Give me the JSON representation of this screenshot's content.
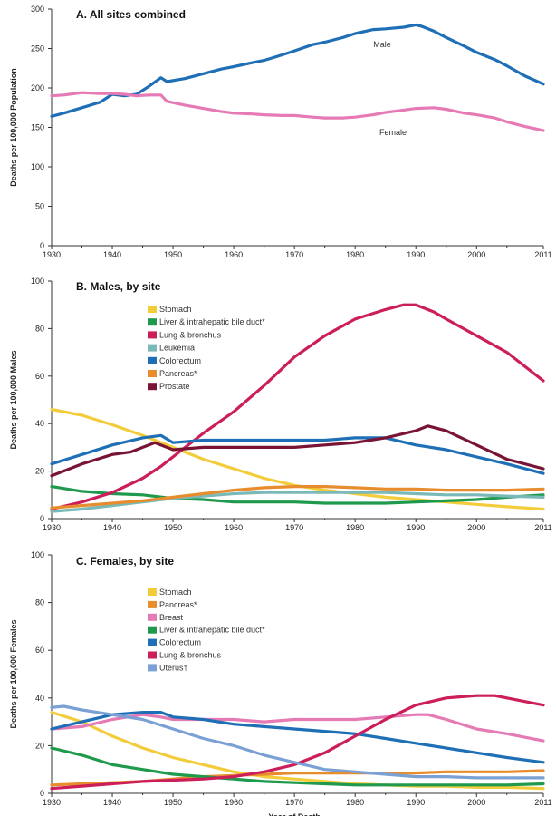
{
  "chart_data": [
    {
      "type": "line",
      "title": "A. All sites combined",
      "ylabel": "Deaths per 100,000 Population",
      "xlabel": "",
      "ylim": [
        0,
        300
      ],
      "yticks": [
        "0",
        "50",
        "100",
        "150",
        "200",
        "250",
        "300"
      ],
      "xticks": [
        "1930",
        "1940",
        "1950",
        "1960",
        "1970",
        "1980",
        "1990",
        "2000",
        "2011"
      ],
      "series": [
        {
          "name": "Male",
          "color": "#1f6fb6",
          "x": [
            1930,
            1932,
            1935,
            1938,
            1940,
            1942,
            1944,
            1946,
            1948,
            1949,
            1952,
            1955,
            1958,
            1960,
            1963,
            1965,
            1968,
            1970,
            1973,
            1975,
            1978,
            1980,
            1983,
            1985,
            1988,
            1990,
            1991,
            1993,
            1995,
            1998,
            2000,
            2003,
            2005,
            2008,
            2011
          ],
          "y": [
            164,
            168,
            175,
            182,
            192,
            190,
            192,
            202,
            213,
            208,
            212,
            218,
            224,
            227,
            232,
            235,
            242,
            247,
            255,
            258,
            264,
            269,
            274,
            275,
            277,
            280,
            278,
            272,
            264,
            253,
            245,
            236,
            228,
            215,
            205
          ]
        },
        {
          "name": "Female",
          "color": "#e57ab5",
          "x": [
            1930,
            1932,
            1935,
            1938,
            1940,
            1942,
            1944,
            1946,
            1948,
            1949,
            1952,
            1955,
            1958,
            1960,
            1963,
            1965,
            1968,
            1970,
            1973,
            1975,
            1978,
            1980,
            1983,
            1985,
            1988,
            1990,
            1993,
            1995,
            1998,
            2000,
            2003,
            2005,
            2008,
            2011
          ],
          "y": [
            190,
            191,
            194,
            193,
            193,
            192,
            190,
            191,
            191,
            183,
            178,
            174,
            170,
            168,
            167,
            166,
            165,
            165,
            163,
            162,
            162,
            163,
            166,
            169,
            172,
            174,
            175,
            173,
            168,
            166,
            162,
            157,
            151,
            146
          ]
        }
      ]
    },
    {
      "type": "line",
      "title": "B. Males, by site",
      "ylabel": "Deaths per 100,000 Males",
      "xlabel": "",
      "ylim": [
        0,
        100
      ],
      "yticks": [
        "0",
        "20",
        "40",
        "60",
        "80",
        "100"
      ],
      "xticks": [
        "1930",
        "1940",
        "1950",
        "1960",
        "1970",
        "1980",
        "1990",
        "2000",
        "2011"
      ],
      "legend": [
        "Stomach",
        "Liver & intrahepatic bile duct*",
        "Lung & bronchus",
        "Leukemia",
        "Colorectum",
        "Pancreas*",
        "Prostate"
      ],
      "series": [
        {
          "name": "Stomach",
          "color": "#f2cc3a",
          "x": [
            1930,
            1935,
            1940,
            1945,
            1950,
            1955,
            1960,
            1965,
            1970,
            1975,
            1980,
            1985,
            1990,
            1995,
            2000,
            2005,
            2011
          ],
          "y": [
            46,
            43.5,
            39.5,
            35,
            30,
            25,
            21,
            17,
            14,
            12,
            10.5,
            9,
            8,
            7,
            6,
            5,
            4
          ]
        },
        {
          "name": "Liver & intrahepatic bile duct*",
          "color": "#1f9a4d",
          "x": [
            1930,
            1935,
            1940,
            1945,
            1950,
            1955,
            1960,
            1965,
            1970,
            1975,
            1980,
            1985,
            1990,
            1995,
            2000,
            2005,
            2011
          ],
          "y": [
            13.5,
            11.5,
            10.5,
            10,
            8.5,
            8,
            7,
            7,
            7,
            6.5,
            6.5,
            6.5,
            7,
            7.5,
            8,
            9,
            10
          ]
        },
        {
          "name": "Lung & bronchus",
          "color": "#cc1e5a",
          "x": [
            1930,
            1935,
            1940,
            1945,
            1948,
            1950,
            1955,
            1960,
            1965,
            1970,
            1975,
            1980,
            1985,
            1988,
            1990,
            1993,
            1995,
            2000,
            2005,
            2011
          ],
          "y": [
            4,
            7,
            11,
            17,
            22,
            26,
            36,
            45,
            56,
            68,
            77,
            84,
            88,
            90,
            90,
            87,
            84,
            77,
            70,
            58
          ]
        },
        {
          "name": "Leukemia",
          "color": "#7bb9b8",
          "x": [
            1930,
            1935,
            1940,
            1945,
            1950,
            1955,
            1960,
            1965,
            1970,
            1975,
            1980,
            1985,
            1990,
            1995,
            2000,
            2005,
            2011
          ],
          "y": [
            3,
            4,
            5.5,
            7,
            8.5,
            9.5,
            10.5,
            11,
            11,
            11,
            11,
            11,
            10.5,
            10,
            10,
            9.5,
            9
          ]
        },
        {
          "name": "Colorectum",
          "color": "#1f6fb6",
          "x": [
            1930,
            1935,
            1940,
            1945,
            1948,
            1950,
            1955,
            1960,
            1965,
            1970,
            1975,
            1980,
            1985,
            1990,
            1995,
            2000,
            2005,
            2011
          ],
          "y": [
            23,
            27,
            31,
            34,
            35,
            32,
            33,
            33,
            33,
            33,
            33,
            34,
            34,
            31,
            29,
            26,
            23,
            19
          ]
        },
        {
          "name": "Pancreas*",
          "color": "#e88d2d",
          "x": [
            1930,
            1935,
            1940,
            1945,
            1950,
            1955,
            1960,
            1965,
            1970,
            1975,
            1980,
            1985,
            1990,
            1995,
            2000,
            2005,
            2011
          ],
          "y": [
            4.5,
            5.5,
            6.5,
            7.5,
            9,
            10.5,
            12,
            13,
            13.5,
            13.5,
            13,
            12.5,
            12.5,
            12,
            12,
            12,
            12.5
          ]
        },
        {
          "name": "Prostate",
          "color": "#7a1435",
          "x": [
            1930,
            1935,
            1940,
            1943,
            1945,
            1947,
            1950,
            1955,
            1960,
            1965,
            1970,
            1975,
            1980,
            1985,
            1990,
            1992,
            1995,
            2000,
            2005,
            2011
          ],
          "y": [
            18,
            23,
            27,
            28,
            30,
            32,
            29,
            30,
            30,
            30,
            30,
            31,
            32,
            34,
            37,
            39,
            37,
            31,
            25,
            21
          ]
        }
      ]
    },
    {
      "type": "line",
      "title": "C. Females, by site",
      "ylabel": "Deaths per 100,000 Females",
      "xlabel": "Year of Death",
      "ylim": [
        0,
        100
      ],
      "yticks": [
        "0",
        "20",
        "40",
        "60",
        "80",
        "100"
      ],
      "xticks": [
        "1930",
        "1940",
        "1950",
        "1960",
        "1970",
        "1980",
        "1990",
        "2000",
        "2011"
      ],
      "legend": [
        "Stomach",
        "Pancreas*",
        "Breast",
        "Liver & intrahepatic bile duct*",
        "Colorectum",
        "Lung & bronchus",
        "Uterus†"
      ],
      "series": [
        {
          "name": "Stomach",
          "color": "#f2cc3a",
          "x": [
            1930,
            1935,
            1940,
            1945,
            1950,
            1955,
            1960,
            1965,
            1970,
            1975,
            1980,
            1985,
            1990,
            1995,
            2000,
            2005,
            2011
          ],
          "y": [
            34,
            30,
            24,
            19,
            15,
            12,
            9,
            7,
            6,
            5,
            4,
            3.5,
            3,
            3,
            2.5,
            2.5,
            2
          ]
        },
        {
          "name": "Pancreas*",
          "color": "#e88d2d",
          "x": [
            1930,
            1935,
            1940,
            1945,
            1950,
            1955,
            1960,
            1965,
            1970,
            1975,
            1980,
            1985,
            1990,
            1995,
            2000,
            2005,
            2011
          ],
          "y": [
            3.5,
            4,
            4.5,
            5,
            6,
            7,
            7.5,
            8,
            8.5,
            8.5,
            8.5,
            8.5,
            8.5,
            9,
            9,
            9,
            9.5
          ]
        },
        {
          "name": "Breast",
          "color": "#e57ab5",
          "x": [
            1930,
            1935,
            1940,
            1945,
            1948,
            1950,
            1955,
            1960,
            1965,
            1970,
            1975,
            1980,
            1985,
            1990,
            1992,
            1995,
            2000,
            2005,
            2011
          ],
          "y": [
            27,
            28,
            31,
            33,
            32,
            31,
            31,
            31,
            30,
            31,
            31,
            31,
            32,
            33,
            33,
            31,
            27,
            25,
            22
          ]
        },
        {
          "name": "Liver & intrahepatic bile duct*",
          "color": "#1f9a4d",
          "x": [
            1930,
            1935,
            1940,
            1945,
            1950,
            1955,
            1960,
            1965,
            1970,
            1975,
            1980,
            1985,
            1990,
            1995,
            2000,
            2005,
            2011
          ],
          "y": [
            19,
            16,
            12,
            10,
            8,
            7,
            6,
            5,
            4.5,
            4,
            3.5,
            3.5,
            3.5,
            3.5,
            3.5,
            3.5,
            4
          ]
        },
        {
          "name": "Colorectum",
          "color": "#1f6fb6",
          "x": [
            1930,
            1935,
            1940,
            1945,
            1948,
            1950,
            1955,
            1960,
            1965,
            1970,
            1975,
            1980,
            1985,
            1990,
            1995,
            2000,
            2005,
            2011
          ],
          "y": [
            27,
            30,
            33,
            34,
            34,
            32,
            31,
            29,
            28,
            27,
            26,
            25,
            23,
            21,
            19,
            17,
            15,
            13
          ]
        },
        {
          "name": "Lung & bronchus",
          "color": "#cc1e5a",
          "x": [
            1930,
            1935,
            1940,
            1945,
            1950,
            1955,
            1960,
            1965,
            1970,
            1975,
            1980,
            1985,
            1990,
            1995,
            2000,
            2003,
            2005,
            2011
          ],
          "y": [
            2,
            3,
            4,
            5,
            5.5,
            6,
            7,
            9,
            12,
            17,
            24,
            31,
            37,
            40,
            41,
            41,
            40,
            37
          ]
        },
        {
          "name": "Uterus†",
          "color": "#7aa0d4",
          "x": [
            1930,
            1932,
            1935,
            1940,
            1945,
            1950,
            1955,
            1960,
            1965,
            1970,
            1975,
            1980,
            1985,
            1990,
            1995,
            2000,
            2005,
            2011
          ],
          "y": [
            36,
            36.5,
            35,
            33,
            31,
            27,
            23,
            20,
            16,
            13,
            10,
            9,
            8,
            7,
            7,
            6.5,
            6.5,
            6.5
          ]
        }
      ]
    }
  ],
  "annotations": {
    "male_label": "Male",
    "female_label": "Female"
  },
  "footer": {
    "xlabel": "Year of Death"
  }
}
